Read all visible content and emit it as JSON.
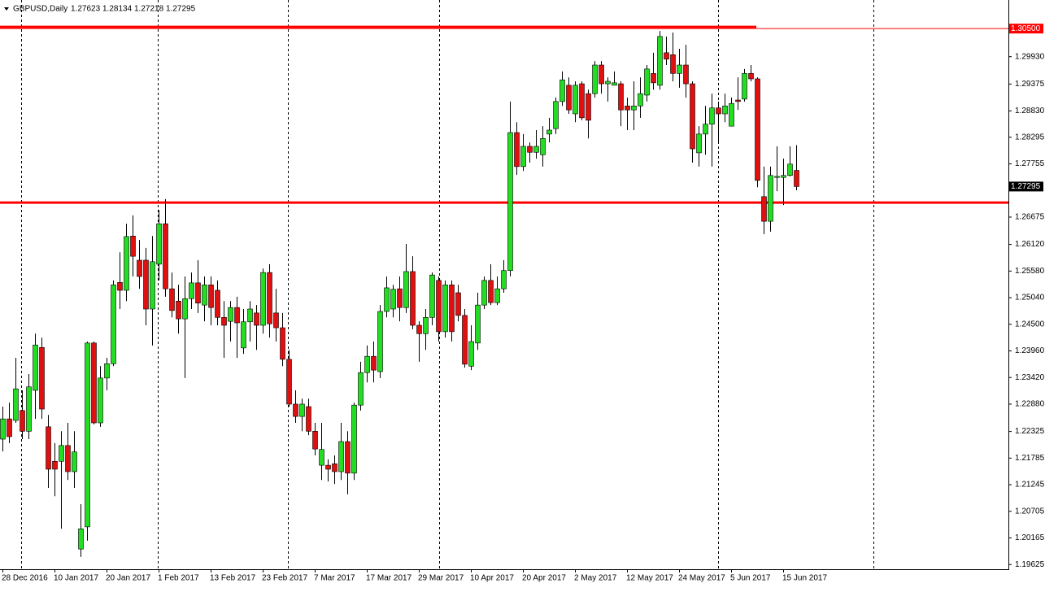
{
  "chart_data": {
    "type": "candlestick",
    "title": "GBPUSD,Daily",
    "categories": [
      "28 Dec 2016",
      null,
      null,
      null,
      null,
      null,
      null,
      null,
      "10 Jan 2017",
      null,
      null,
      null,
      null,
      null,
      null,
      null,
      "20 Jan 2017",
      null,
      null,
      null,
      null,
      null,
      null,
      null,
      "1 Feb 2017",
      null,
      null,
      null,
      null,
      null,
      null,
      null,
      "13 Feb 2017",
      null,
      null,
      null,
      null,
      null,
      null,
      null,
      "23 Feb 2017",
      null,
      null,
      null,
      null,
      null,
      null,
      null,
      "7 Mar 2017",
      null,
      null,
      null,
      null,
      null,
      null,
      null,
      "17 Mar 2017",
      null,
      null,
      null,
      null,
      null,
      null,
      null,
      "29 Mar 2017",
      null,
      null,
      null,
      null,
      null,
      null,
      null,
      "10 Apr 2017",
      null,
      null,
      null,
      null,
      null,
      null,
      null,
      "20 Apr 2017",
      null,
      null,
      null,
      null,
      null,
      null,
      null,
      "2 May 2017",
      null,
      null,
      null,
      null,
      null,
      null,
      null,
      "12 May 2017",
      null,
      null,
      null,
      null,
      null,
      null,
      null,
      "24 May 2017",
      null,
      null,
      null,
      null,
      null,
      null,
      null,
      "5 Jun 2017",
      null,
      null,
      null,
      null,
      null,
      null,
      null,
      "15 Jun 2017",
      null,
      null
    ],
    "open": [
      1.2217,
      1.2258,
      1.2255,
      1.2275,
      1.2233,
      1.2316,
      1.2403,
      1.2242,
      1.2172,
      1.2172,
      1.2204,
      1.2151,
      1.1994,
      1.2039,
      1.2412,
      1.225,
      1.2341,
      1.237,
      1.2535,
      1.2519,
      1.2629,
      1.258,
      1.258,
      1.2481,
      1.2572,
      1.2654,
      1.2522,
      1.2497,
      1.2461,
      1.2502,
      1.2534,
      1.2489,
      1.253,
      1.2519,
      1.2464,
      1.2456,
      1.2484,
      1.2402,
      1.2455,
      1.2473,
      1.2448,
      1.2555,
      1.2473,
      1.2443,
      1.2379,
      1.2288,
      1.2263,
      1.2283,
      1.2233,
      1.2164,
      1.2164,
      1.2167,
      1.2151,
      1.2212,
      1.2148,
      1.2286,
      1.2352,
      1.2385,
      1.2354,
      1.2476,
      1.2481,
      1.2522,
      1.2484,
      1.2557,
      1.2448,
      1.2431,
      1.2464,
      1.2539,
      1.2435,
      1.253,
      1.2514,
      1.2468,
      1.2365,
      1.2412,
      1.2489,
      1.2539,
      1.2494,
      1.2522,
      1.2559,
      1.2839,
      1.277,
      1.2811,
      1.2799,
      1.2794,
      1.2836,
      1.2847,
      1.2902,
      1.2935,
      1.2877,
      1.2938,
      1.2918,
      1.2918,
      1.2976,
      1.2938,
      1.2935,
      1.2938,
      1.2893,
      1.2885,
      1.2893,
      1.2915,
      1.2959,
      1.2935,
      1.3001,
      1.2997,
      1.2959,
      1.2976,
      1.2938,
      1.2798,
      1.2836,
      1.2856,
      1.2889,
      1.2877,
      1.2852,
      1.2905,
      1.2907,
      1.2959,
      1.2948,
      1.2709,
      1.2659,
      1.2748,
      1.2748,
      1.2752,
      1.27623
    ],
    "high": [
      1.2283,
      1.2291,
      1.2382,
      1.2316,
      1.2349,
      1.2431,
      1.2423,
      1.2266,
      1.2209,
      1.2233,
      1.225,
      1.2233,
      1.2085,
      1.2415,
      1.2415,
      1.2365,
      1.2382,
      1.2539,
      1.2596,
      1.2654,
      1.2671,
      1.2621,
      1.2605,
      1.2629,
      1.2682,
      1.2704,
      1.2555,
      1.253,
      1.2547,
      1.2555,
      1.258,
      1.2547,
      1.2547,
      1.2539,
      1.2497,
      1.2497,
      1.2506,
      1.2481,
      1.2497,
      1.2489,
      1.2563,
      1.2572,
      1.2522,
      1.2473,
      1.2398,
      1.2316,
      1.2299,
      1.2299,
      1.225,
      1.225,
      1.2176,
      1.2184,
      1.225,
      1.2233,
      1.2291,
      1.2374,
      1.2407,
      1.2415,
      1.2489,
      1.2547,
      1.253,
      1.2547,
      1.2613,
      1.2588,
      1.2456,
      1.2481,
      1.2555,
      1.2547,
      1.2539,
      1.2539,
      1.253,
      1.2481,
      1.2448,
      1.2514,
      1.2547,
      1.2572,
      1.2547,
      1.258,
      1.2902,
      1.286,
      1.2836,
      1.2819,
      1.2844,
      1.2852,
      1.2869,
      1.291,
      1.2963,
      1.2951,
      1.2943,
      1.2943,
      1.2926,
      1.2984,
      1.2984,
      1.2951,
      1.2963,
      1.2943,
      1.291,
      1.2943,
      1.2951,
      1.2976,
      1.3001,
      1.3045,
      1.3034,
      1.3042,
      1.3009,
      1.3017,
      1.2943,
      1.2852,
      1.2893,
      1.2918,
      1.2902,
      1.2918,
      1.291,
      1.2951,
      1.2968,
      1.2976,
      1.2951,
      1.277,
      1.277,
      1.2811,
      1.2786,
      1.2811,
      1.28134
    ],
    "low": [
      1.2192,
      1.2209,
      1.225,
      1.2217,
      1.2217,
      1.2258,
      1.2258,
      1.2118,
      1.2101,
      1.2035,
      1.2134,
      1.2118,
      1.1978,
      1.2011,
      1.2247,
      1.2242,
      1.2316,
      1.2365,
      1.2481,
      1.2497,
      1.2547,
      1.2522,
      1.2448,
      1.2407,
      1.2539,
      1.2506,
      1.2464,
      1.2431,
      1.2341,
      1.2481,
      1.2473,
      1.2456,
      1.2448,
      1.2448,
      1.2382,
      1.2415,
      1.2382,
      1.239,
      1.2415,
      1.2398,
      1.2431,
      1.2423,
      1.2415,
      1.2365,
      1.2283,
      1.225,
      1.2233,
      1.2225,
      1.2184,
      1.2134,
      1.2131,
      1.2126,
      1.2134,
      1.2105,
      1.2134,
      1.2275,
      1.2332,
      1.2332,
      1.2341,
      1.2464,
      1.2464,
      1.2456,
      1.2473,
      1.244,
      1.2374,
      1.2398,
      1.2448,
      1.2415,
      1.2423,
      1.2415,
      1.2456,
      1.2362,
      1.2357,
      1.2398,
      1.2481,
      1.2489,
      1.2489,
      1.2514,
      1.2547,
      1.2753,
      1.2761,
      1.2778,
      1.2786,
      1.277,
      1.2819,
      1.2836,
      1.2893,
      1.2877,
      1.286,
      1.2864,
      1.2827,
      1.291,
      1.2918,
      1.2902,
      1.2935,
      1.2852,
      1.2844,
      1.2844,
      1.2869,
      1.2902,
      1.2926,
      1.2926,
      1.2976,
      1.2943,
      1.293,
      1.291,
      1.2778,
      1.277,
      1.2794,
      1.277,
      1.2819,
      1.286,
      1.2852,
      1.2885,
      1.2902,
      1.2943,
      1.2728,
      1.2633,
      1.2638,
      1.272,
      1.2692,
      1.275,
      1.27218
    ],
    "close": [
      1.2258,
      1.2222,
      1.2319,
      1.2233,
      1.2323,
      1.2408,
      1.2278,
      1.2156,
      1.2156,
      1.2204,
      1.2151,
      1.2191,
      1.2035,
      1.2412,
      1.225,
      1.2341,
      1.237,
      1.253,
      1.2519,
      1.2628,
      1.2588,
      1.2547,
      1.2481,
      1.2577,
      1.2654,
      1.2522,
      1.2478,
      1.2461,
      1.2502,
      1.2534,
      1.2493,
      1.253,
      1.2484,
      1.2464,
      1.2448,
      1.2484,
      1.2453,
      1.2455,
      1.2481,
      1.2448,
      1.2555,
      1.2451,
      1.2443,
      1.2379,
      1.2288,
      1.2263,
      1.2288,
      1.2233,
      1.2197,
      1.2196,
      1.2156,
      1.2151,
      1.2212,
      1.2148,
      1.2286,
      1.2352,
      1.2385,
      1.2357,
      1.2476,
      1.2524,
      1.2521,
      1.2484,
      1.2557,
      1.2448,
      1.2431,
      1.2464,
      1.255,
      1.2435,
      1.253,
      1.2435,
      1.2468,
      1.2369,
      1.2415,
      1.2489,
      1.2539,
      1.2494,
      1.2522,
      1.2559,
      1.2839,
      1.277,
      1.2811,
      1.2799,
      1.2811,
      1.2827,
      1.2844,
      1.2902,
      1.2946,
      1.2885,
      1.2935,
      1.2869,
      1.2864,
      1.2976,
      1.2938,
      1.2943,
      1.294,
      1.2885,
      1.2885,
      1.2893,
      1.2918,
      1.2968,
      1.294,
      1.3034,
      1.2988,
      1.2959,
      1.2976,
      1.2938,
      1.2806,
      1.2836,
      1.2856,
      1.2889,
      1.2877,
      1.2893,
      1.2898,
      1.2902,
      1.2959,
      1.2948,
      1.2742,
      1.2659,
      1.2752,
      1.275,
      1.2752,
      1.2775,
      1.27295
    ],
    "up_color": "#22dd22",
    "down_color": "#e01010",
    "wick_color": "#000000",
    "ylim": [
      1.1953,
      1.3108
    ],
    "yticks": [
      {
        "value": 1.2993,
        "label": "1.29930"
      },
      {
        "value": 1.29375,
        "label": "1.29375"
      },
      {
        "value": 1.2883,
        "label": "1.28830"
      },
      {
        "value": 1.28295,
        "label": "1.28295"
      },
      {
        "value": 1.27755,
        "label": "1.27755"
      },
      {
        "value": 1.26675,
        "label": "1.26675"
      },
      {
        "value": 1.2612,
        "label": "1.26120"
      },
      {
        "value": 1.2558,
        "label": "1.25580"
      },
      {
        "value": 1.2504,
        "label": "1.25040"
      },
      {
        "value": 1.245,
        "label": "1.24500"
      },
      {
        "value": 1.2396,
        "label": "1.23960"
      },
      {
        "value": 1.2342,
        "label": "1.23420"
      },
      {
        "value": 1.2288,
        "label": "1.22880"
      },
      {
        "value": 1.22325,
        "label": "1.22325"
      },
      {
        "value": 1.21785,
        "label": "1.21785"
      },
      {
        "value": 1.21245,
        "label": "1.21245"
      },
      {
        "value": 1.20705,
        "label": "1.20705"
      },
      {
        "value": 1.20165,
        "label": "1.20165"
      },
      {
        "value": 1.19625,
        "label": "1.19625"
      }
    ],
    "levels": [
      {
        "value": 1.305,
        "label": "1.30500",
        "color": "#ff0000"
      },
      {
        "value": 1.2697,
        "color": "#ff0000"
      }
    ]
  }
}
